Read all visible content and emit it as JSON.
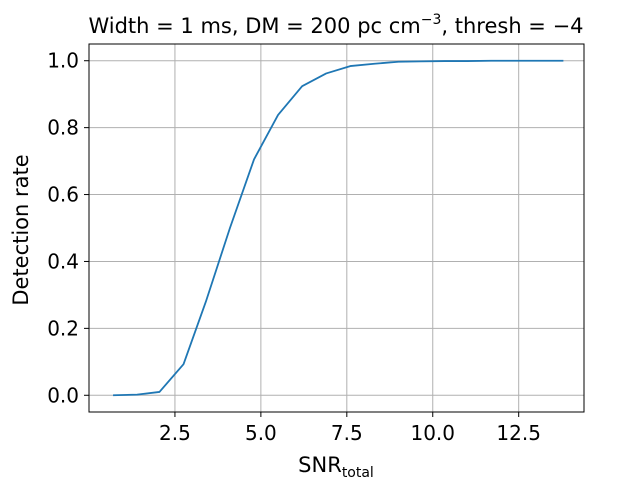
{
  "chart_data": {
    "type": "line",
    "title": {
      "part1": "Width = 1 ms, DM = 200 pc cm",
      "sup": "−3",
      "part2": ", thresh = −4"
    },
    "xlabel": {
      "main": "SNR",
      "sub": "total"
    },
    "ylabel": "Detection rate",
    "xlim": [
      0.0,
      14.4
    ],
    "ylim": [
      -0.05,
      1.05
    ],
    "xticks": [
      2.5,
      5.0,
      7.5,
      10.0,
      12.5
    ],
    "xtick_labels": [
      "2.5",
      "5.0",
      "7.5",
      "10.0",
      "12.5"
    ],
    "yticks": [
      0.0,
      0.2,
      0.4,
      0.6,
      0.8,
      1.0
    ],
    "ytick_labels": [
      "0.0",
      "0.2",
      "0.4",
      "0.6",
      "0.8",
      "1.0"
    ],
    "grid": true,
    "series": [
      {
        "color": "#1f77b4",
        "x": [
          0.7,
          1.4,
          2.05,
          2.75,
          3.4,
          4.1,
          4.8,
          5.5,
          6.2,
          6.9,
          7.6,
          8.3,
          9.0,
          9.65,
          10.35,
          11.0,
          11.7,
          12.4,
          13.1,
          13.8
        ],
        "y": [
          0.0,
          0.002,
          0.01,
          0.093,
          0.28,
          0.5,
          0.705,
          0.838,
          0.924,
          0.962,
          0.984,
          0.991,
          0.997,
          0.998,
          0.999,
          0.999,
          1.0,
          1.0,
          1.0,
          1.0
        ]
      }
    ]
  }
}
